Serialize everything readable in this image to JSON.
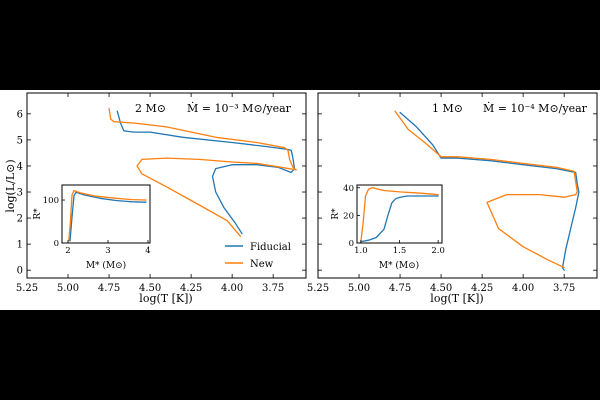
{
  "colors": {
    "fiducial": "#1f77b4",
    "new": "#ff7f0e"
  },
  "chart_data": [
    {
      "type": "line",
      "panel": "left",
      "annotation_mass": "2 M⊙",
      "annotation_mdot": "Ṁ = 10⁻³ M⊙/year",
      "xlabel": "log(T [K])",
      "ylabel": "log(L/L⊙)",
      "xlim": [
        5.25,
        3.55
      ],
      "ylim": [
        -0.3,
        6.8
      ],
      "xticks": [
        5.25,
        5.0,
        4.75,
        4.5,
        4.25,
        4.0,
        3.75
      ],
      "xtick_labels": [
        "5.25",
        "5.00",
        "4.75",
        "4.50",
        "4.25",
        "4.00",
        "3.75"
      ],
      "yticks": [
        0,
        1,
        2,
        3,
        4,
        5,
        6
      ],
      "ytick_labels": [
        "0",
        "1",
        "2",
        "3",
        "4",
        "5",
        "6"
      ],
      "legend": {
        "placement": "lower-right",
        "entries": [
          "Fiducial",
          "New"
        ]
      },
      "series": [
        {
          "name": "Fiducial",
          "color_key": "fiducial",
          "x": [
            4.7,
            4.68,
            4.66,
            4.6,
            4.5,
            4.3,
            4.0,
            3.8,
            3.68,
            3.64,
            3.63,
            3.62,
            3.64,
            3.72,
            3.85,
            4.0,
            4.1,
            4.12,
            4.1,
            4.05,
            3.98,
            3.94
          ],
          "y": [
            6.1,
            5.65,
            5.35,
            5.3,
            5.3,
            5.1,
            4.9,
            4.75,
            4.65,
            4.6,
            4.3,
            3.9,
            3.75,
            3.95,
            4.05,
            4.05,
            3.9,
            3.6,
            3.0,
            2.4,
            1.8,
            1.4
          ]
        },
        {
          "name": "New",
          "color_key": "new",
          "x": [
            4.75,
            4.74,
            4.72,
            4.6,
            4.4,
            4.1,
            3.85,
            3.68,
            3.66,
            3.65,
            3.63,
            3.61,
            3.7,
            3.85,
            4.0,
            4.2,
            4.4,
            4.55,
            4.58,
            4.55,
            4.4,
            4.2,
            4.03,
            3.95
          ],
          "y": [
            6.2,
            5.8,
            5.7,
            5.65,
            5.5,
            5.1,
            4.9,
            4.7,
            4.6,
            4.25,
            3.95,
            3.85,
            3.95,
            4.1,
            4.15,
            4.25,
            4.3,
            4.25,
            4.0,
            3.7,
            3.2,
            2.5,
            1.9,
            1.3
          ]
        }
      ],
      "inset": {
        "xlabel": "M* (M⊙)",
        "ylabel": "R*",
        "xlim": [
          1.85,
          4.05
        ],
        "ylim": [
          0,
          135
        ],
        "xticks": [
          2,
          3,
          4
        ],
        "xtick_labels": [
          "2",
          "3",
          "4"
        ],
        "yticks": [
          0,
          100
        ],
        "ytick_labels": [
          "0",
          "100"
        ],
        "series": [
          {
            "name": "Fiducial",
            "color_key": "fiducial",
            "x": [
              2.05,
              2.1,
              2.15,
              2.2,
              2.4,
              2.8,
              3.2,
              3.6,
              3.95
            ],
            "y": [
              5,
              60,
              110,
              118,
              112,
              104,
              99,
              96,
              95
            ]
          },
          {
            "name": "New",
            "color_key": "new",
            "x": [
              2.02,
              2.06,
              2.1,
              2.15,
              2.3,
              2.7,
              3.2,
              3.6,
              3.95
            ],
            "y": [
              5,
              50,
              112,
              122,
              117,
              109,
              104,
              101,
              100
            ]
          }
        ]
      }
    },
    {
      "type": "line",
      "panel": "right",
      "annotation_mass": "1 M⊙",
      "annotation_mdot": "Ṁ = 10⁻⁴ M⊙/year",
      "xlabel": "log(T [K])",
      "xlim": [
        5.25,
        3.55
      ],
      "ylim": [
        -0.3,
        6.8
      ],
      "xticks": [
        5.25,
        5.0,
        4.75,
        4.5,
        4.25,
        4.0,
        3.75
      ],
      "xtick_labels": [
        "5.25",
        "5.00",
        "4.75",
        "4.50",
        "4.25",
        "4.00",
        "3.75"
      ],
      "yticks": [
        0,
        1,
        2,
        3,
        4,
        5,
        6
      ],
      "series": [
        {
          "name": "Fiducial",
          "color_key": "fiducial",
          "x": [
            4.75,
            4.65,
            4.55,
            4.5,
            4.4,
            4.2,
            4.0,
            3.8,
            3.68,
            3.67,
            3.66,
            3.68,
            3.71,
            3.74,
            3.76,
            3.75
          ],
          "y": [
            6.05,
            5.5,
            4.8,
            4.3,
            4.3,
            4.2,
            4.05,
            3.9,
            3.75,
            3.3,
            3.0,
            2.4,
            1.6,
            0.8,
            0.1,
            0.0
          ]
        },
        {
          "name": "New",
          "color_key": "new",
          "x": [
            4.78,
            4.7,
            4.6,
            4.5,
            4.4,
            4.2,
            4.0,
            3.8,
            3.69,
            3.67,
            3.68,
            3.75,
            3.9,
            4.1,
            4.22,
            4.15,
            4.0,
            3.85,
            3.75
          ],
          "y": [
            6.1,
            5.4,
            4.9,
            4.35,
            4.35,
            4.25,
            4.1,
            3.95,
            3.8,
            3.0,
            2.9,
            2.8,
            2.9,
            2.9,
            2.6,
            1.6,
            0.9,
            0.4,
            0.1
          ]
        }
      ],
      "inset": {
        "xlabel": "M* (M⊙)",
        "ylabel": "R*",
        "xlim": [
          0.95,
          2.05
        ],
        "ylim": [
          0,
          42
        ],
        "xticks": [
          1.0,
          1.5,
          2.0
        ],
        "xtick_labels": [
          "1.0",
          "1.5",
          "2.0"
        ],
        "yticks": [
          0,
          20,
          40
        ],
        "ytick_labels": [
          "0",
          "20",
          "40"
        ],
        "series": [
          {
            "name": "Fiducial",
            "color_key": "fiducial",
            "x": [
              1.0,
              1.1,
              1.2,
              1.3,
              1.35,
              1.4,
              1.45,
              1.5,
              1.6,
              1.8,
              2.0
            ],
            "y": [
              1,
              2,
              4,
              10,
              20,
              29,
              32,
              33,
              34,
              34,
              34
            ]
          },
          {
            "name": "New",
            "color_key": "new",
            "x": [
              1.0,
              1.03,
              1.06,
              1.1,
              1.15,
              1.3,
              1.5,
              1.8,
              2.0
            ],
            "y": [
              1,
              15,
              34,
              39,
              40,
              38,
              37,
              36,
              35
            ]
          }
        ]
      }
    }
  ]
}
